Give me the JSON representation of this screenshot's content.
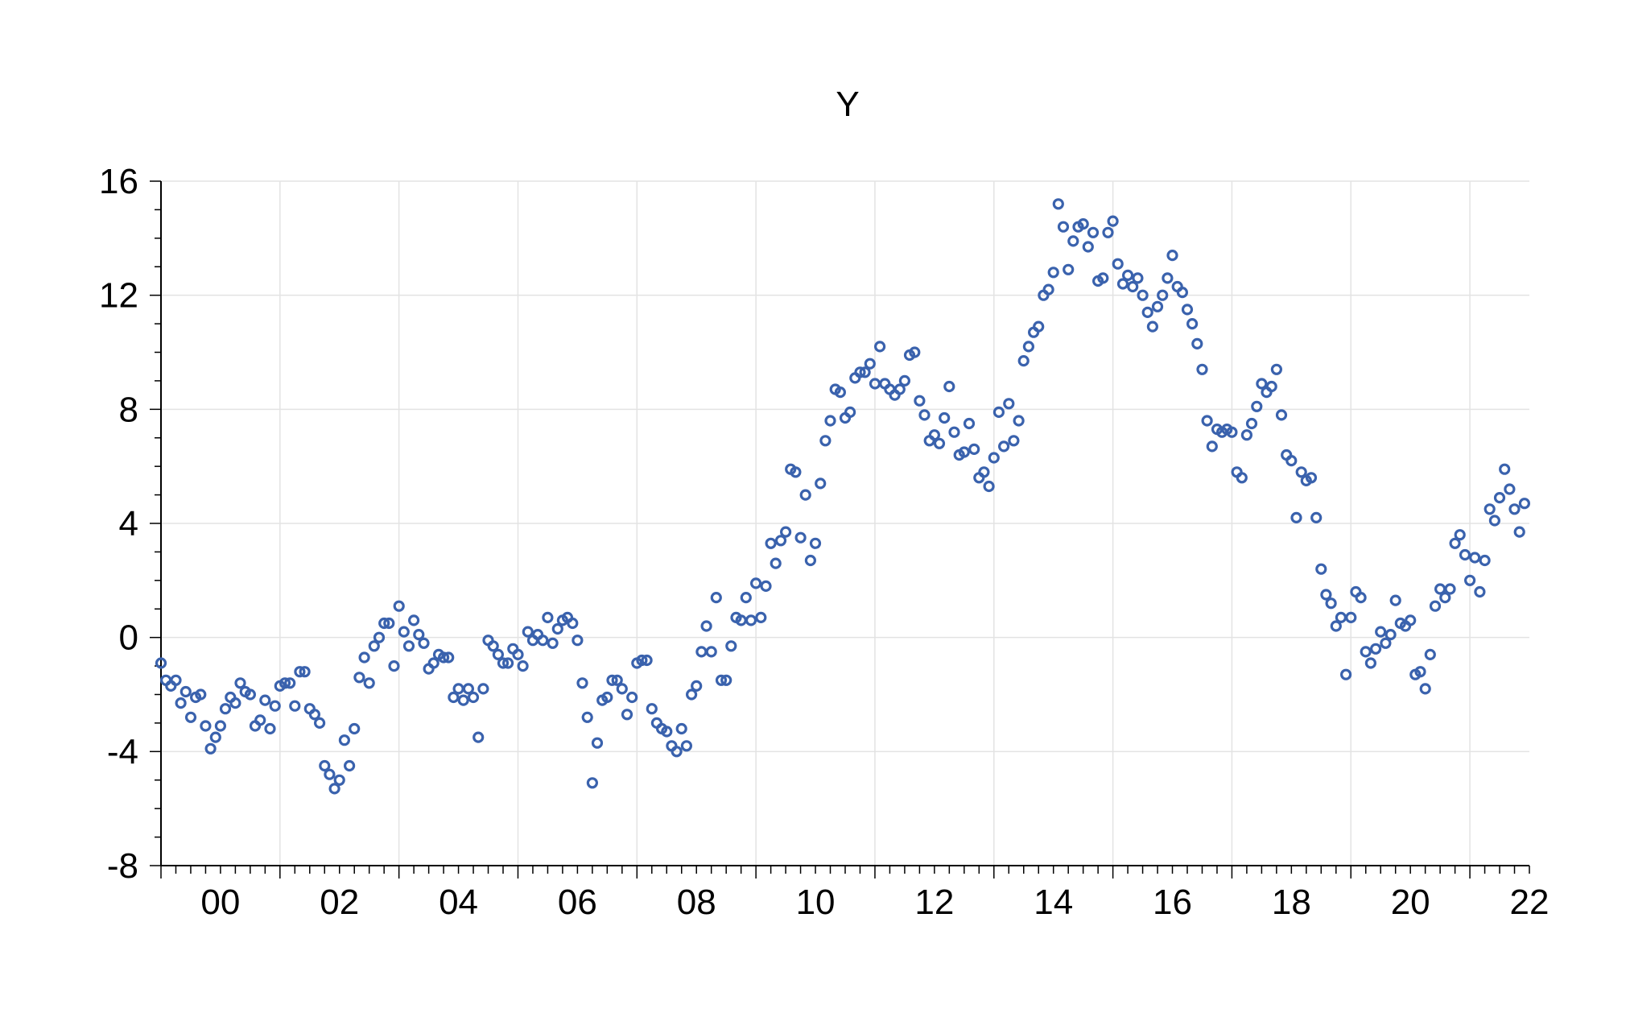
{
  "chart_data": {
    "type": "scatter",
    "title": "Y",
    "xlabel": "",
    "ylabel": "",
    "x_range": [
      2000.0,
      2023.0
    ],
    "ylim": [
      -8,
      16
    ],
    "y_ticks": [
      16,
      12,
      8,
      4,
      0,
      -4,
      -8
    ],
    "y_tick_labels": [
      "16",
      "12",
      "8",
      "4",
      "0",
      "-4",
      "-8"
    ],
    "x_tick_labels": [
      "00",
      "02",
      "04",
      "06",
      "08",
      "10",
      "12",
      "14",
      "16",
      "18",
      "20",
      "22"
    ],
    "grid": true,
    "legend": "none",
    "marker": "open-circle",
    "colors": {
      "series": "#3a62ad",
      "grid": "#e3e3e3",
      "axis": "#000000"
    },
    "series": [
      {
        "x": [
          2000.0,
          2000.083,
          2000.167,
          2000.25,
          2000.333,
          2000.417,
          2000.5,
          2000.583,
          2000.667,
          2000.75,
          2000.833,
          2000.917,
          2001.0,
          2001.083,
          2001.167,
          2001.25,
          2001.333,
          2001.417,
          2001.5,
          2001.583,
          2001.667,
          2001.75,
          2001.833,
          2001.917,
          2002.0,
          2002.083,
          2002.167,
          2002.25,
          2002.333,
          2002.417,
          2002.5,
          2002.583,
          2002.667,
          2002.75,
          2002.833,
          2002.917,
          2003.0,
          2003.083,
          2003.167,
          2003.25,
          2003.333,
          2003.417,
          2003.5,
          2003.583,
          2003.667,
          2003.75,
          2003.833,
          2003.917,
          2004.0,
          2004.083,
          2004.167,
          2004.25,
          2004.333,
          2004.417,
          2004.5,
          2004.583,
          2004.667,
          2004.75,
          2004.833,
          2004.917,
          2005.0,
          2005.083,
          2005.167,
          2005.25,
          2005.333,
          2005.417,
          2005.5,
          2005.583,
          2005.667,
          2005.75,
          2005.833,
          2005.917,
          2006.0,
          2006.083,
          2006.167,
          2006.25,
          2006.333,
          2006.417,
          2006.5,
          2006.583,
          2006.667,
          2006.75,
          2006.833,
          2006.917,
          2007.0,
          2007.083,
          2007.167,
          2007.25,
          2007.333,
          2007.417,
          2007.5,
          2007.583,
          2007.667,
          2007.75,
          2007.833,
          2007.917,
          2008.0,
          2008.083,
          2008.167,
          2008.25,
          2008.333,
          2008.417,
          2008.5,
          2008.583,
          2008.667,
          2008.75,
          2008.833,
          2008.917,
          2009.0,
          2009.083,
          2009.167,
          2009.25,
          2009.333,
          2009.417,
          2009.5,
          2009.583,
          2009.667,
          2009.75,
          2009.833,
          2009.917,
          2010.0,
          2010.083,
          2010.167,
          2010.25,
          2010.333,
          2010.417,
          2010.5,
          2010.583,
          2010.667,
          2010.75,
          2010.833,
          2010.917,
          2011.0,
          2011.083,
          2011.167,
          2011.25,
          2011.333,
          2011.417,
          2011.5,
          2011.583,
          2011.667,
          2011.75,
          2011.833,
          2011.917,
          2012.0,
          2012.083,
          2012.167,
          2012.25,
          2012.333,
          2012.417,
          2012.5,
          2012.583,
          2012.667,
          2012.75,
          2012.833,
          2012.917,
          2013.0,
          2013.083,
          2013.167,
          2013.25,
          2013.333,
          2013.417,
          2013.5,
          2013.583,
          2013.667,
          2013.75,
          2013.833,
          2013.917,
          2014.0,
          2014.083,
          2014.167,
          2014.25,
          2014.333,
          2014.417,
          2014.5,
          2014.583,
          2014.667,
          2014.75,
          2014.833,
          2014.917,
          2015.0,
          2015.083,
          2015.167,
          2015.25,
          2015.333,
          2015.417,
          2015.5,
          2015.583,
          2015.667,
          2015.75,
          2015.833,
          2015.917,
          2016.0,
          2016.083,
          2016.167,
          2016.25,
          2016.333,
          2016.417,
          2016.5,
          2016.583,
          2016.667,
          2016.75,
          2016.833,
          2016.917,
          2017.0,
          2017.083,
          2017.167,
          2017.25,
          2017.333,
          2017.417,
          2017.5,
          2017.583,
          2017.667,
          2017.75,
          2017.833,
          2017.917,
          2018.0,
          2018.083,
          2018.167,
          2018.25,
          2018.333,
          2018.417,
          2018.5,
          2018.583,
          2018.667,
          2018.75,
          2018.833,
          2018.917,
          2019.0,
          2019.083,
          2019.167,
          2019.25,
          2019.333,
          2019.417,
          2019.5,
          2019.583,
          2019.667,
          2019.75,
          2019.833,
          2019.917,
          2020.0,
          2020.083,
          2020.167,
          2020.25,
          2020.333,
          2020.417,
          2020.5,
          2020.583,
          2020.667,
          2020.75,
          2020.833,
          2020.917,
          2021.0,
          2021.083,
          2021.167,
          2021.25,
          2021.333,
          2021.417,
          2021.5,
          2021.583,
          2021.667,
          2021.75,
          2021.833,
          2021.917,
          2022.0,
          2022.083,
          2022.167,
          2022.25,
          2022.333,
          2022.417,
          2022.5,
          2022.583,
          2022.667,
          2022.75,
          2022.833,
          2022.917
        ],
        "y": [
          -0.9,
          -1.5,
          -1.7,
          -1.5,
          -2.3,
          -1.9,
          -2.8,
          -2.1,
          -2.0,
          -3.1,
          -3.9,
          -3.5,
          -3.1,
          -2.5,
          -2.1,
          -2.3,
          -1.6,
          -1.9,
          -2.0,
          -3.1,
          -2.9,
          -2.2,
          -3.2,
          -2.4,
          -1.7,
          -1.6,
          -1.6,
          -2.4,
          -1.2,
          -1.2,
          -2.5,
          -2.7,
          -3.0,
          -4.5,
          -4.8,
          -5.3,
          -5.0,
          -3.6,
          -4.5,
          -3.2,
          -1.4,
          -0.7,
          -1.6,
          -0.3,
          0.0,
          0.5,
          0.5,
          -1.0,
          1.1,
          0.2,
          -0.3,
          0.6,
          0.1,
          -0.2,
          -1.1,
          -0.9,
          -0.6,
          -0.7,
          -0.7,
          -2.1,
          -1.8,
          -2.2,
          -1.8,
          -2.1,
          -3.5,
          -1.8,
          -0.1,
          -0.3,
          -0.6,
          -0.9,
          -0.9,
          -0.4,
          -0.6,
          -1.0,
          0.2,
          -0.1,
          0.1,
          -0.1,
          0.7,
          -0.2,
          0.3,
          0.6,
          0.7,
          0.5,
          -0.1,
          -1.6,
          -2.8,
          -5.1,
          -3.7,
          -2.2,
          -2.1,
          -1.5,
          -1.5,
          -1.8,
          -2.7,
          -2.1,
          -0.9,
          -0.8,
          -0.8,
          -2.5,
          -3.0,
          -3.2,
          -3.3,
          -3.8,
          -4.0,
          -3.2,
          -3.8,
          -2.0,
          -1.7,
          -0.5,
          0.4,
          -0.5,
          1.4,
          -1.5,
          -1.5,
          -0.3,
          0.7,
          0.6,
          1.4,
          0.6,
          1.9,
          0.7,
          1.8,
          3.3,
          2.6,
          3.4,
          3.7,
          5.9,
          5.8,
          3.5,
          5.0,
          2.7,
          3.3,
          5.4,
          6.9,
          7.6,
          8.7,
          8.6,
          7.7,
          7.9,
          9.1,
          9.3,
          9.3,
          9.6,
          8.9,
          10.2,
          8.9,
          8.7,
          8.5,
          8.7,
          9.0,
          9.9,
          10.0,
          8.3,
          7.8,
          6.9,
          7.1,
          6.8,
          7.7,
          8.8,
          7.2,
          6.4,
          6.5,
          7.5,
          6.6,
          5.6,
          5.8,
          5.3,
          6.3,
          7.9,
          6.7,
          8.2,
          6.9,
          7.6,
          9.7,
          10.2,
          10.7,
          10.9,
          12.0,
          12.2,
          12.8,
          15.2,
          14.4,
          12.9,
          13.9,
          14.4,
          14.5,
          13.7,
          14.2,
          12.5,
          12.6,
          14.2,
          14.6,
          13.1,
          12.4,
          12.7,
          12.3,
          12.6,
          12.0,
          11.4,
          10.9,
          11.6,
          12.0,
          12.6,
          13.4,
          12.3,
          12.1,
          11.5,
          11.0,
          10.3,
          9.4,
          7.6,
          6.7,
          7.3,
          7.2,
          7.3,
          7.2,
          5.8,
          5.6,
          7.1,
          7.5,
          8.1,
          8.9,
          8.6,
          8.8,
          9.4,
          7.8,
          6.4,
          6.2,
          4.2,
          5.8,
          5.5,
          5.6,
          4.2,
          2.4,
          1.5,
          1.2,
          0.4,
          0.7,
          -1.3,
          0.7,
          1.6,
          1.4,
          -0.5,
          -0.9,
          -0.4,
          0.2,
          -0.2,
          0.1,
          1.3,
          0.5,
          0.4,
          0.6,
          -1.3,
          -1.2,
          -1.8,
          -0.6,
          1.1,
          1.7,
          1.4,
          1.7,
          3.3,
          3.6,
          2.9,
          2.0,
          2.8,
          1.6,
          2.7,
          4.5,
          4.1,
          4.9,
          5.9,
          5.2,
          4.5,
          3.7,
          4.7
        ]
      }
    ]
  }
}
